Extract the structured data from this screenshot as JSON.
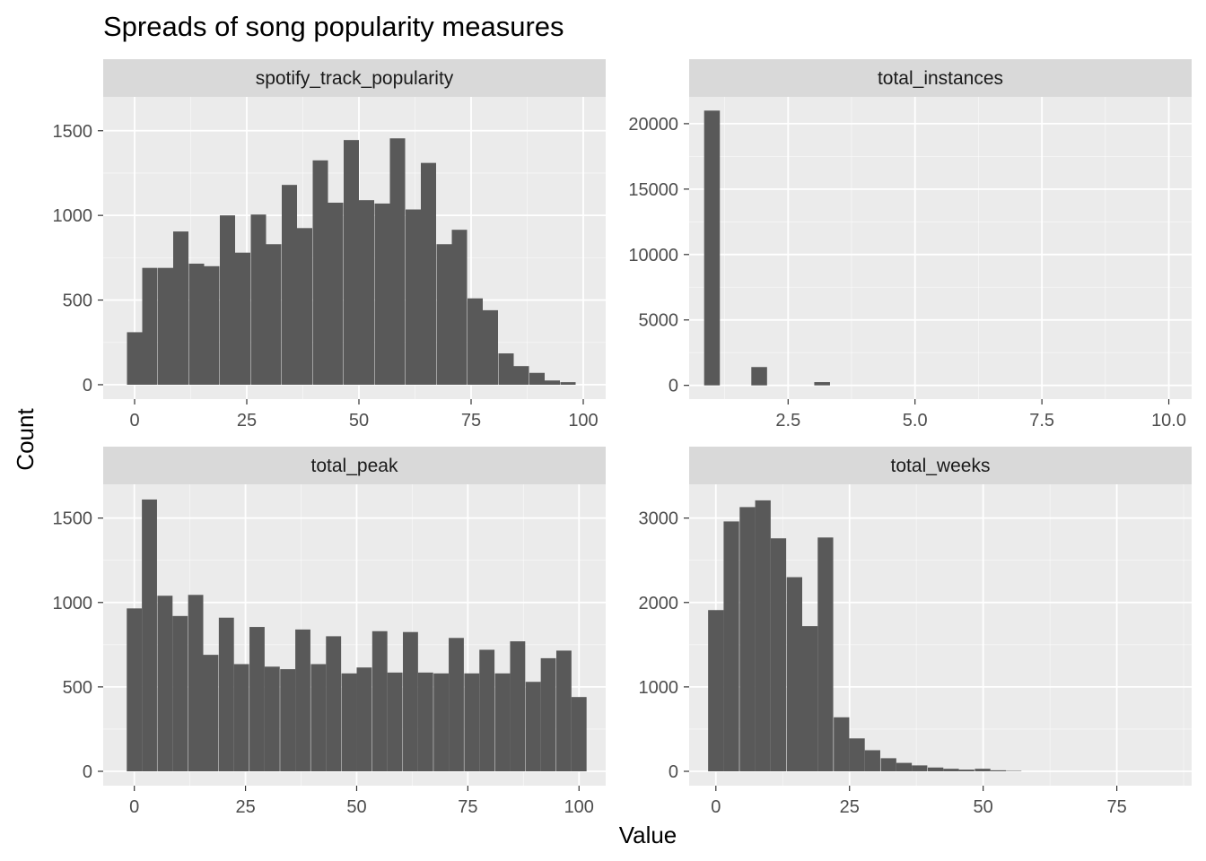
{
  "colors": {
    "panel_bg": "#ebebeb",
    "strip_bg": "#d9d9d9",
    "grid_major": "#ffffff",
    "bar_fill": "#595959",
    "tick": "#333333",
    "tick_text": "#4d4d4d"
  },
  "chart_data": {
    "type": "bar",
    "title": "Spreads of song popularity measures",
    "xlabel": "Value",
    "ylabel": "Count",
    "grid": true,
    "panels": [
      {
        "strip": "spotify_track_popularity",
        "bin_width": 3.4,
        "bins_x": [
          -0.0,
          3.4,
          6.9,
          10.3,
          13.8,
          17.2,
          20.7,
          24.1,
          27.6,
          31.0,
          34.5,
          37.9,
          41.4,
          44.8,
          48.3,
          51.7,
          55.2,
          58.6,
          62.1,
          65.5,
          69.0,
          72.4,
          75.9,
          79.3,
          82.8,
          86.2,
          89.7,
          93.1,
          96.6
        ],
        "values": [
          310,
          690,
          690,
          905,
          715,
          700,
          1000,
          780,
          1005,
          830,
          1180,
          925,
          1325,
          1075,
          1445,
          1090,
          1070,
          1455,
          1035,
          1310,
          830,
          915,
          510,
          440,
          185,
          110,
          70,
          25,
          15
        ],
        "xlim": [
          -7,
          105
        ],
        "ylim": [
          -85,
          1700
        ],
        "x_ticks": [
          0,
          25,
          50,
          75,
          100
        ],
        "x_tick_labels": [
          "0",
          "25",
          "50",
          "75",
          "100"
        ],
        "y_ticks": [
          0,
          500,
          1000,
          1500
        ],
        "y_tick_labels": [
          "0",
          "500",
          "1000",
          "1500"
        ]
      },
      {
        "strip": "total_instances",
        "bin_width": 0.31,
        "bins_x": [
          1.0,
          1.93,
          3.17
        ],
        "values": [
          21000,
          1400,
          250
        ],
        "xlim": [
          0.55,
          10.45
        ],
        "ylim": [
          -1050,
          22050
        ],
        "x_ticks": [
          2.5,
          5.0,
          7.5,
          10.0
        ],
        "x_tick_labels": [
          "2.5",
          "5.0",
          "7.5",
          "10.0"
        ],
        "y_ticks": [
          0,
          5000,
          10000,
          15000,
          20000
        ],
        "y_tick_labels": [
          "0",
          "5000",
          "10000",
          "15000",
          "20000"
        ]
      },
      {
        "strip": "total_peak",
        "bin_width": 3.4,
        "bins_x": [
          0.0,
          3.4,
          6.9,
          10.3,
          13.8,
          17.2,
          20.7,
          24.1,
          27.6,
          31.0,
          34.5,
          37.9,
          41.4,
          44.8,
          48.3,
          51.7,
          55.2,
          58.6,
          62.1,
          65.5,
          69.0,
          72.4,
          75.9,
          79.3,
          82.8,
          86.2,
          89.7,
          93.1,
          96.6,
          100.0
        ],
        "values": [
          965,
          1610,
          1040,
          920,
          1045,
          690,
          910,
          635,
          855,
          620,
          605,
          840,
          635,
          800,
          580,
          615,
          830,
          585,
          825,
          585,
          580,
          790,
          580,
          720,
          580,
          770,
          530,
          670,
          715,
          440
        ],
        "xlim": [
          -7,
          106
        ],
        "ylim": [
          -85,
          1700
        ],
        "x_ticks": [
          0,
          25,
          50,
          75,
          100
        ],
        "x_tick_labels": [
          "0",
          "25",
          "50",
          "75",
          "100"
        ],
        "y_ticks": [
          0,
          500,
          1000,
          1500
        ],
        "y_tick_labels": [
          "0",
          "500",
          "1000",
          "1500"
        ]
      },
      {
        "strip": "total_weeks",
        "bin_width": 2.9,
        "bins_x": [
          0.0,
          2.9,
          5.9,
          8.8,
          11.7,
          14.7,
          17.6,
          20.5,
          23.5,
          26.4,
          29.3,
          32.3,
          35.2,
          38.1,
          41.1,
          44.0,
          46.9,
          49.9,
          52.8,
          55.7
        ],
        "values": [
          1910,
          2960,
          3130,
          3210,
          2760,
          2300,
          1720,
          2770,
          640,
          390,
          250,
          155,
          100,
          70,
          45,
          30,
          20,
          30,
          12,
          5
        ],
        "xlim": [
          -5,
          89
        ],
        "ylim": [
          -170,
          3400
        ],
        "x_ticks": [
          0,
          25,
          50,
          75
        ],
        "x_tick_labels": [
          "0",
          "25",
          "50",
          "75"
        ],
        "y_ticks": [
          0,
          1000,
          2000,
          3000
        ],
        "y_tick_labels": [
          "0",
          "1000",
          "2000",
          "3000"
        ]
      }
    ]
  }
}
